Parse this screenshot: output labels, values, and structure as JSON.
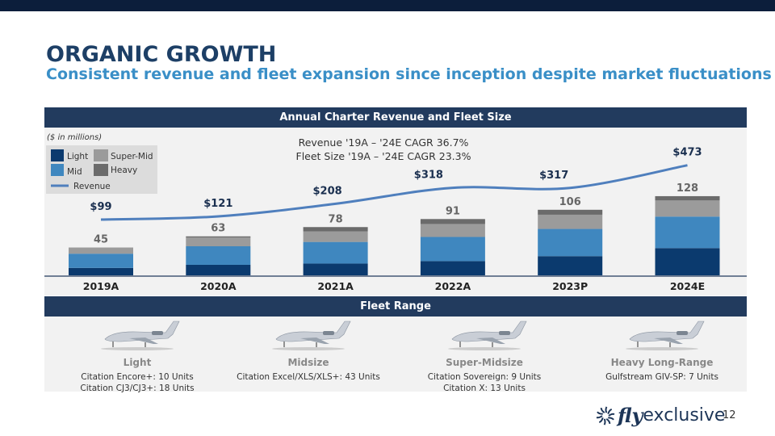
{
  "title": "ORGANIC GROWTH",
  "subtitle": "Consistent revenue and fleet expansion since inception despite market fluctuations",
  "chart_header": "Annual Charter Revenue and Fleet Size",
  "fleet_header": "Fleet Range",
  "colors": {
    "light": "#0b3a6e",
    "mid": "#3f87bf",
    "super_mid": "#9b9b9b",
    "heavy": "#6b6b6b",
    "revenue": "#4f7fbd"
  },
  "chart_data": {
    "type": "bar",
    "title": "Annual Charter Revenue and Fleet Size",
    "units_note": "($ in millions)",
    "annotations": [
      "Revenue '19A – '24E CAGR 36.7%",
      "Fleet Size '19A – '24E CAGR 23.3%"
    ],
    "legend": [
      "Light",
      "Super-Mid",
      "Mid",
      "Heavy",
      "Revenue"
    ],
    "legend_placement": "top-left",
    "categories": [
      "2019A",
      "2020A",
      "2021A",
      "2022A",
      "2023P",
      "2024E"
    ],
    "series": [
      {
        "name": "Light",
        "values": [
          12,
          17,
          19,
          23,
          31,
          44
        ]
      },
      {
        "name": "Mid",
        "values": [
          23,
          30,
          35,
          39,
          44,
          51
        ]
      },
      {
        "name": "Super-Mid",
        "values": [
          10,
          14,
          17,
          21,
          23,
          26
        ]
      },
      {
        "name": "Heavy",
        "values": [
          0,
          2,
          7,
          8,
          8,
          7
        ]
      }
    ],
    "fleet_totals": [
      45,
      63,
      78,
      91,
      106,
      128
    ],
    "revenue": {
      "name": "Revenue",
      "type": "line",
      "values": [
        99,
        121,
        208,
        318,
        317,
        473
      ],
      "labels": [
        "$99",
        "$121",
        "$208",
        "$318",
        "$317",
        "$473"
      ]
    },
    "ylim": [
      0,
      130
    ]
  },
  "fleet": [
    {
      "name": "Light",
      "details": [
        "Citation Encore+: 10 Units",
        "Citation CJ3/CJ3+: 18 Units"
      ]
    },
    {
      "name": "Midsize",
      "details": [
        "Citation Excel/XLS/XLS+: 43 Units"
      ]
    },
    {
      "name": "Super-Midsize",
      "details": [
        "Citation Sovereign: 9 Units",
        "Citation X: 13 Units"
      ]
    },
    {
      "name": "Heavy Long-Range",
      "details": [
        "Gulfstream GIV-SP: 7 Units"
      ]
    }
  ],
  "logo": {
    "fly": "fly",
    "exclusive": "exclusive"
  },
  "page_number": "12"
}
